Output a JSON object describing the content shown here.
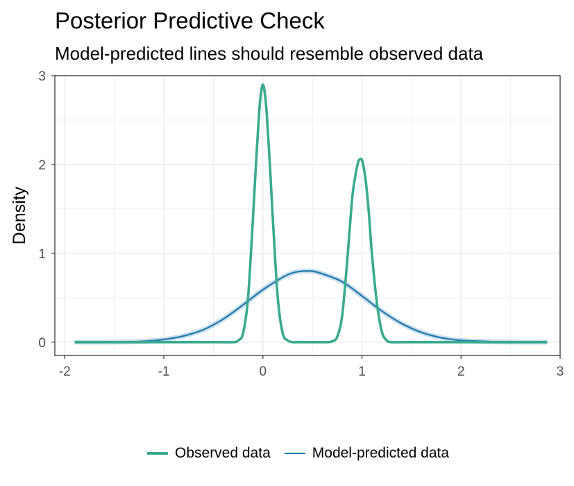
{
  "title": "Posterior Predictive Check",
  "subtitle": "Model-predicted lines should resemble observed data",
  "colors": {
    "observed": "#3aaa8e",
    "predicted": "#1f78b0",
    "grid": "#ebebeb",
    "frame": "#333333"
  },
  "chart_data": {
    "type": "line",
    "title": "Posterior Predictive Check",
    "subtitle": "Model-predicted lines should resemble observed data",
    "xlabel": "",
    "ylabel": "Density",
    "xlim": [
      -2.1,
      3.0
    ],
    "ylim": [
      -0.15,
      3.0
    ],
    "x_ticks": [
      -2,
      -1,
      0,
      1,
      2,
      3
    ],
    "y_ticks": [
      0,
      1,
      2,
      3
    ],
    "grid": true,
    "legend_position": "bottom",
    "legend": [
      "Observed data",
      "Model-predicted data"
    ],
    "series": [
      {
        "name": "Observed data",
        "x": [
          -1.9,
          -0.5,
          -0.3,
          -0.25,
          -0.2,
          -0.15,
          -0.1,
          -0.07,
          -0.04,
          -0.02,
          0.0,
          0.02,
          0.04,
          0.07,
          0.1,
          0.15,
          0.2,
          0.25,
          0.3,
          0.35,
          0.5,
          0.65,
          0.7,
          0.75,
          0.8,
          0.85,
          0.9,
          0.93,
          0.96,
          0.98,
          1.0,
          1.02,
          1.04,
          1.07,
          1.1,
          1.15,
          1.2,
          1.25,
          1.3,
          1.5,
          2.87
        ],
        "y": [
          0.0,
          0.0,
          0.0,
          0.02,
          0.1,
          0.5,
          1.4,
          2.0,
          2.55,
          2.8,
          2.9,
          2.8,
          2.55,
          2.0,
          1.4,
          0.5,
          0.1,
          0.02,
          0.0,
          0.0,
          0.0,
          0.0,
          0.01,
          0.06,
          0.3,
          0.9,
          1.6,
          1.85,
          2.02,
          2.06,
          2.05,
          1.95,
          1.8,
          1.45,
          1.0,
          0.45,
          0.12,
          0.02,
          0.0,
          0.0,
          0.0
        ]
      },
      {
        "name": "Model-predicted data",
        "x": [
          -1.9,
          -1.5,
          -1.2,
          -1.0,
          -0.8,
          -0.6,
          -0.4,
          -0.2,
          0.0,
          0.2,
          0.3,
          0.4,
          0.45,
          0.5,
          0.6,
          0.8,
          1.0,
          1.2,
          1.4,
          1.6,
          1.8,
          2.0,
          2.2,
          2.5,
          2.87
        ],
        "y": [
          0.0,
          0.0,
          0.01,
          0.03,
          0.07,
          0.14,
          0.26,
          0.42,
          0.59,
          0.73,
          0.78,
          0.8,
          0.8,
          0.8,
          0.77,
          0.68,
          0.52,
          0.35,
          0.21,
          0.11,
          0.05,
          0.02,
          0.01,
          0.0,
          0.0
        ]
      }
    ]
  }
}
